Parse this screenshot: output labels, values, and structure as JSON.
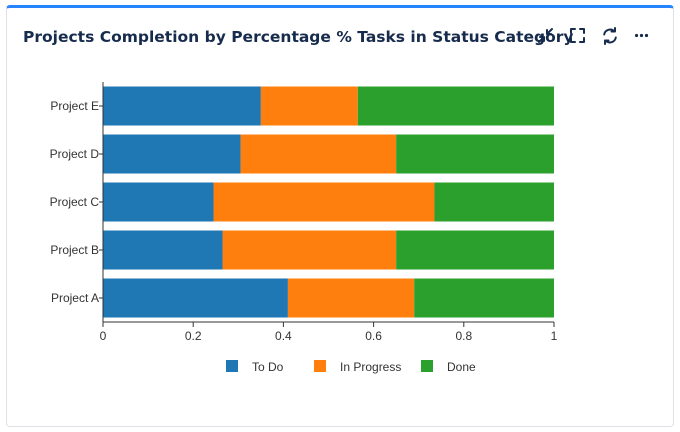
{
  "widget": {
    "title": "Projects Completion by Percentage % Tasks in Status Category"
  },
  "toolbar": [
    {
      "name": "collapse-icon",
      "label": "collapse"
    },
    {
      "name": "fullscreen-icon",
      "label": "fullscreen"
    },
    {
      "name": "refresh-icon",
      "label": "refresh"
    },
    {
      "name": "more-icon",
      "label": "more"
    }
  ],
  "chart_data": {
    "type": "bar",
    "orientation": "horizontal",
    "stacked": true,
    "categories": [
      "Project A",
      "Project B",
      "Project C",
      "Project D",
      "Project E"
    ],
    "series": [
      {
        "name": "To Do",
        "color": "#1f77b4",
        "values": [
          0.41,
          0.265,
          0.245,
          0.305,
          0.35
        ]
      },
      {
        "name": "In Progress",
        "color": "#ff7f0e",
        "values": [
          0.28,
          0.385,
          0.49,
          0.345,
          0.215
        ]
      },
      {
        "name": "Done",
        "color": "#2ca02c",
        "values": [
          0.31,
          0.35,
          0.265,
          0.35,
          0.435
        ]
      }
    ],
    "xlim": [
      0,
      1
    ],
    "xticks": [
      "0",
      "0.2",
      "0.4",
      "0.6",
      "0.8",
      "1"
    ],
    "grid": false,
    "legend_position": "bottom"
  }
}
